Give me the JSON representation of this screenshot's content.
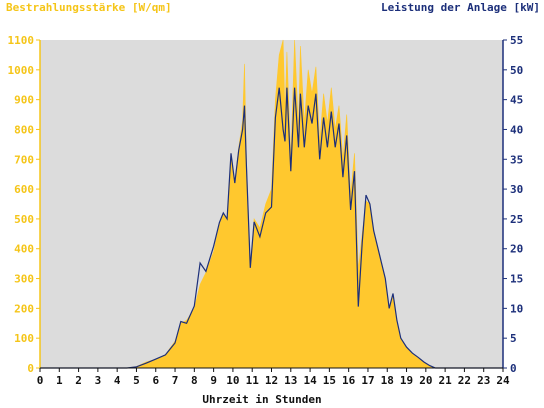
{
  "labels": {
    "left_axis": "Bestrahlungsstärke [W/qm]",
    "right_axis": "Leistung der Anlage [kW]",
    "x_axis": "Uhrzeit in Stunden"
  },
  "colors": {
    "irradiance": "#ffc82e",
    "power": "#1c2f7a",
    "plot_bg": "#dcdcdc",
    "left_axis": "#f5c518",
    "right_axis": "#1c2f7a"
  },
  "chart_data": {
    "type": "area",
    "xlabel": "Uhrzeit in Stunden",
    "xlim": [
      0,
      24
    ],
    "x_ticks": [
      "0",
      "1",
      "2",
      "3",
      "4",
      "5",
      "6",
      "7",
      "8",
      "9",
      "10",
      "11",
      "12",
      "13",
      "14",
      "15",
      "16",
      "17",
      "18",
      "19",
      "20",
      "21",
      "22",
      "23",
      "24"
    ],
    "y_left": {
      "label": "Bestrahlungsstärke [W/qm]",
      "lim": [
        0,
        1100
      ],
      "ticks": [
        "0",
        "100",
        "200",
        "300",
        "400",
        "500",
        "600",
        "700",
        "800",
        "900",
        "1000",
        "1100"
      ]
    },
    "y_right": {
      "label": "Leistung der Anlage [kW]",
      "lim": [
        0,
        55
      ],
      "ticks": [
        "0",
        "5",
        "10",
        "15",
        "20",
        "25",
        "30",
        "35",
        "40",
        "45",
        "50",
        "55"
      ]
    },
    "grid": false,
    "series": [
      {
        "name": "Bestrahlungsstärke [W/qm]",
        "axis": "left",
        "style": "area",
        "points": [
          [
            0,
            0
          ],
          [
            4.5,
            0
          ],
          [
            5,
            5
          ],
          [
            5.5,
            20
          ],
          [
            6,
            30
          ],
          [
            6.5,
            45
          ],
          [
            7,
            90
          ],
          [
            7.3,
            150
          ],
          [
            7.6,
            160
          ],
          [
            8,
            200
          ],
          [
            8.3,
            280
          ],
          [
            8.6,
            320
          ],
          [
            9,
            390
          ],
          [
            9.3,
            480
          ],
          [
            9.5,
            520
          ],
          [
            9.7,
            500
          ],
          [
            9.9,
            720
          ],
          [
            10.1,
            620
          ],
          [
            10.3,
            740
          ],
          [
            10.5,
            830
          ],
          [
            10.6,
            1020
          ],
          [
            10.7,
            700
          ],
          [
            10.9,
            340
          ],
          [
            11.1,
            500
          ],
          [
            11.4,
            470
          ],
          [
            11.7,
            550
          ],
          [
            12,
            600
          ],
          [
            12.2,
            900
          ],
          [
            12.4,
            1050
          ],
          [
            12.6,
            1100
          ],
          [
            12.7,
            850
          ],
          [
            12.8,
            1060
          ],
          [
            13,
            700
          ],
          [
            13.2,
            1100
          ],
          [
            13.4,
            800
          ],
          [
            13.5,
            1080
          ],
          [
            13.7,
            820
          ],
          [
            13.9,
            1000
          ],
          [
            14.1,
            920
          ],
          [
            14.3,
            1010
          ],
          [
            14.5,
            760
          ],
          [
            14.7,
            920
          ],
          [
            14.9,
            820
          ],
          [
            15.1,
            940
          ],
          [
            15.3,
            800
          ],
          [
            15.5,
            880
          ],
          [
            15.7,
            700
          ],
          [
            15.9,
            850
          ],
          [
            16.1,
            580
          ],
          [
            16.3,
            720
          ],
          [
            16.5,
            330
          ],
          [
            16.7,
            450
          ],
          [
            16.9,
            560
          ],
          [
            17.1,
            550
          ],
          [
            17.3,
            460
          ],
          [
            17.6,
            380
          ],
          [
            17.9,
            300
          ],
          [
            18.1,
            200
          ],
          [
            18.3,
            240
          ],
          [
            18.5,
            160
          ],
          [
            18.7,
            100
          ],
          [
            19,
            70
          ],
          [
            19.3,
            50
          ],
          [
            19.6,
            35
          ],
          [
            19.9,
            20
          ],
          [
            20.2,
            8
          ],
          [
            20.5,
            0
          ],
          [
            24,
            0
          ]
        ]
      },
      {
        "name": "Leistung der Anlage [kW]",
        "axis": "right",
        "style": "line",
        "points": [
          [
            0,
            0
          ],
          [
            4.5,
            0
          ],
          [
            5,
            0.2
          ],
          [
            5.5,
            0.8
          ],
          [
            6,
            1.5
          ],
          [
            6.5,
            2.2
          ],
          [
            7,
            4.2
          ],
          [
            7.3,
            7.8
          ],
          [
            7.6,
            7.5
          ],
          [
            8,
            10.4
          ],
          [
            8.3,
            17.6
          ],
          [
            8.6,
            16.2
          ],
          [
            9,
            20.4
          ],
          [
            9.3,
            24.4
          ],
          [
            9.5,
            26
          ],
          [
            9.7,
            25
          ],
          [
            9.9,
            36
          ],
          [
            10.1,
            31
          ],
          [
            10.3,
            36.5
          ],
          [
            10.5,
            40
          ],
          [
            10.6,
            44
          ],
          [
            10.7,
            34
          ],
          [
            10.9,
            16.8
          ],
          [
            11.1,
            24.5
          ],
          [
            11.4,
            22
          ],
          [
            11.7,
            26
          ],
          [
            12,
            27
          ],
          [
            12.2,
            42
          ],
          [
            12.4,
            47
          ],
          [
            12.6,
            40
          ],
          [
            12.7,
            38
          ],
          [
            12.8,
            47
          ],
          [
            13,
            33
          ],
          [
            13.2,
            47
          ],
          [
            13.4,
            37
          ],
          [
            13.5,
            46
          ],
          [
            13.7,
            37
          ],
          [
            13.9,
            44
          ],
          [
            14.1,
            41
          ],
          [
            14.3,
            46
          ],
          [
            14.5,
            35
          ],
          [
            14.7,
            42
          ],
          [
            14.9,
            37
          ],
          [
            15.1,
            43
          ],
          [
            15.3,
            37
          ],
          [
            15.5,
            41
          ],
          [
            15.7,
            32
          ],
          [
            15.9,
            39
          ],
          [
            16.1,
            26.5
          ],
          [
            16.3,
            33
          ],
          [
            16.5,
            10.3
          ],
          [
            16.7,
            21
          ],
          [
            16.9,
            29
          ],
          [
            17.1,
            27.5
          ],
          [
            17.3,
            23
          ],
          [
            17.6,
            19
          ],
          [
            17.9,
            15
          ],
          [
            18.1,
            10
          ],
          [
            18.3,
            12.5
          ],
          [
            18.5,
            8
          ],
          [
            18.7,
            5
          ],
          [
            19,
            3.5
          ],
          [
            19.3,
            2.5
          ],
          [
            19.6,
            1.8
          ],
          [
            19.9,
            1
          ],
          [
            20.2,
            0.4
          ],
          [
            20.5,
            0
          ],
          [
            24,
            0
          ]
        ]
      }
    ]
  }
}
